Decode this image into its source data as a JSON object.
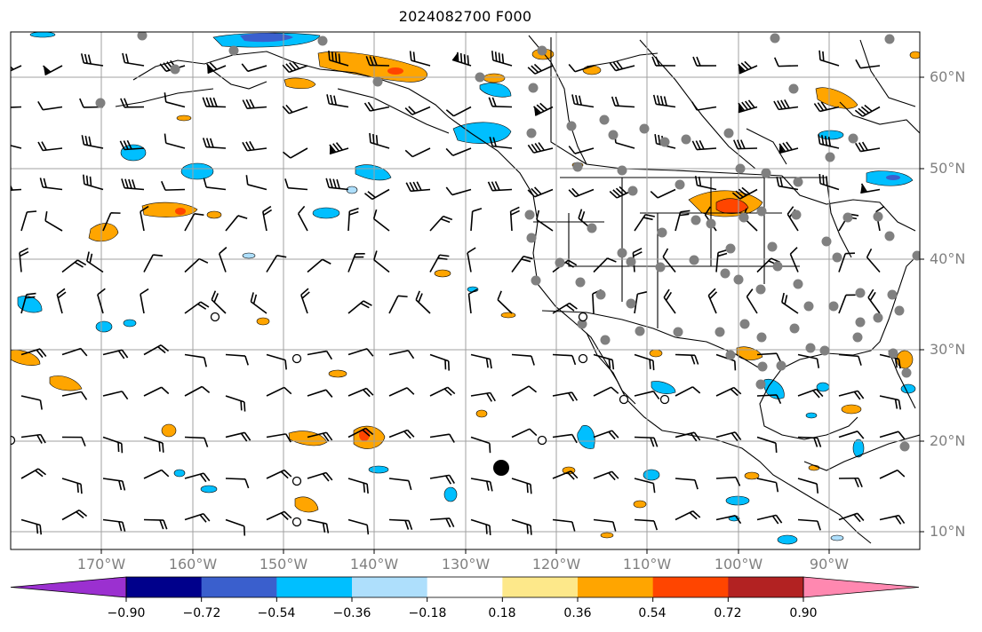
{
  "title": "2024082700 F000",
  "lat_labels": [
    "60°N",
    "50°N",
    "40°N",
    "30°N",
    "20°N",
    "10°N"
  ],
  "lon_labels": [
    "170°W",
    "160°W",
    "150°W",
    "140°W",
    "130°W",
    "120°W",
    "110°W",
    "100°W",
    "90°W"
  ],
  "colorbar": {
    "ticks": [
      "−0.90",
      "−0.72",
      "−0.54",
      "−0.36",
      "−0.18",
      "0.18",
      "0.36",
      "0.54",
      "0.72",
      "0.90"
    ],
    "colors": [
      "#9b30d0",
      "#00008b",
      "#3a5fcd",
      "#00bfff",
      "#aedffc",
      "#ffffff",
      "#fde88a",
      "#ffa500",
      "#ff4500",
      "#b22222",
      "#ff88b0"
    ]
  },
  "map": {
    "projection": "PlateCarree",
    "extent_lon": [
      -180,
      -80
    ],
    "extent_lat": [
      7,
      64
    ],
    "grid": true,
    "grid_color": "#a0a0a0",
    "coastline_color": "#000000",
    "station_marker_color": "#808080",
    "wind_barb_color": "#000000"
  }
}
